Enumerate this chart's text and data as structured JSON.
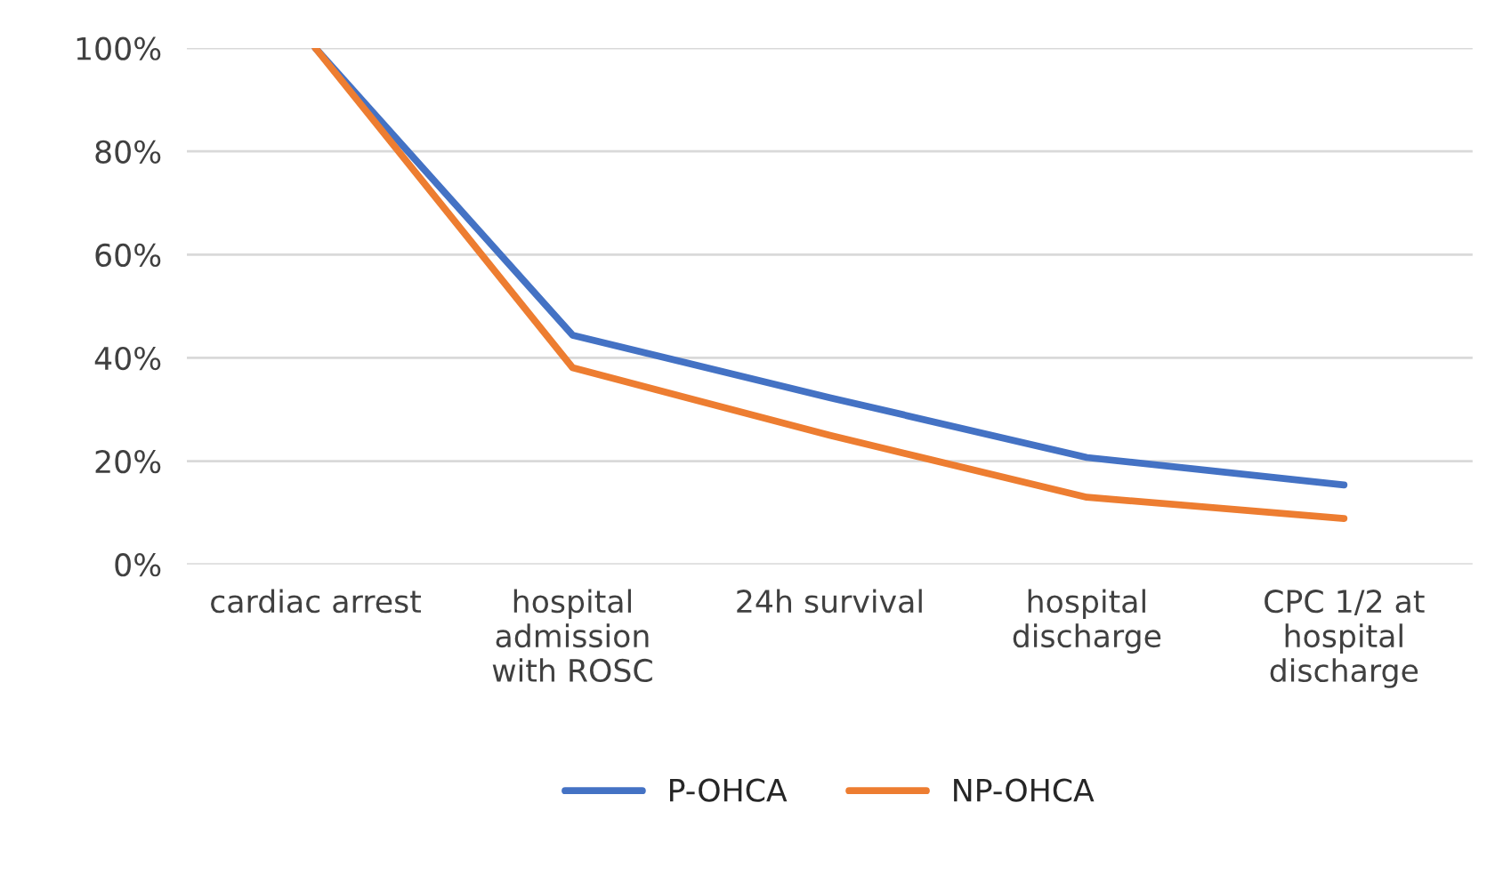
{
  "chart_data": {
    "type": "line",
    "categories": [
      "cardiac arrest",
      "hospital\nadmission\nwith ROSC",
      "24h survival",
      "hospital\ndischarge",
      "CPC 1/2 at\nhospital\ndischarge"
    ],
    "series": [
      {
        "name": "P-OHCA",
        "color": "#4472c4",
        "values": [
          100,
          44.4,
          32.3,
          20.7,
          15.4
        ]
      },
      {
        "name": "NP-OHCA",
        "color": "#ed7d31",
        "values": [
          100,
          38.1,
          25.0,
          13.0,
          8.9
        ]
      }
    ],
    "ylim": [
      0,
      100
    ],
    "yticks": [
      {
        "value": 0,
        "label": "0%"
      },
      {
        "value": 20,
        "label": "20%"
      },
      {
        "value": 40,
        "label": "40%"
      },
      {
        "value": 60,
        "label": "60%"
      },
      {
        "value": 80,
        "label": "80%"
      },
      {
        "value": 100,
        "label": "100%"
      }
    ],
    "grid": "y",
    "legend": "bottom",
    "marker": "none",
    "line_style": "solid"
  }
}
